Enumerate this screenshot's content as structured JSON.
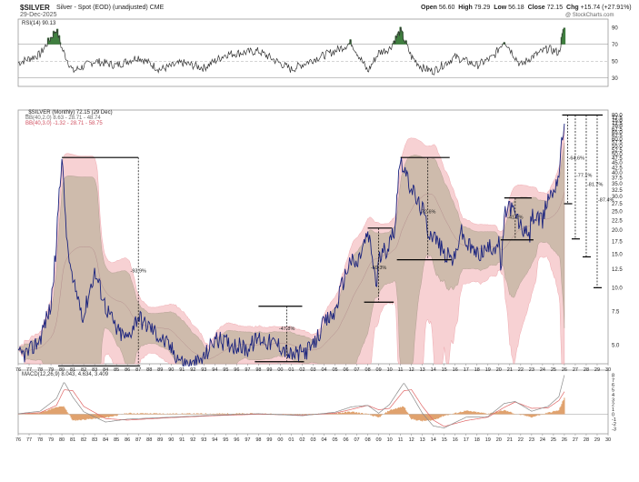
{
  "header": {
    "symbol": "$SILVER",
    "description": "Silver - Spot (EOD) (unadjusted) CME",
    "date": "29-Dec-2025",
    "open_label": "Open",
    "open": "56.60",
    "high_label": "High",
    "high": "79.29",
    "low_label": "Low",
    "low": "56.18",
    "close_label": "Close",
    "close": "72.15",
    "chg_label": "Chg",
    "chg": "+15.74 (+27.91%)",
    "watermark": "@ StockCharts.com"
  },
  "legend": {
    "price": "_$SILVER (Monthly) 72.15 (29 Dec)",
    "bb1": "BB(40,2.0) 8.63 - 28.71 - 48.74",
    "bb2": "BB(40,3.0) -1.32 - 28.71 - 58.75",
    "rsi": "RSI(14) 90.13",
    "macd": "MACD(12,26,9) 8.043, 4.634, 3.409"
  },
  "colors": {
    "price": "#1a237e",
    "bb_inner": "#c8b8a6",
    "bb_outer": "#f6c9cc",
    "bb_outer_line": "#e88890",
    "rsi_line": "#333333",
    "rsi_overbought": "#3f7f3f",
    "macd_line": "#8a8a8a",
    "signal_line": "#e06666",
    "hist": "#e0a26e",
    "annot": "#000000"
  },
  "chart_data": [
    {
      "type": "line",
      "panel": "rsi",
      "y_ticks": [
        "90",
        "70",
        "50",
        "30"
      ],
      "ylim": [
        20,
        100
      ],
      "reference_lines": [
        70,
        50,
        30
      ],
      "x": [
        1976,
        1978,
        1979.5,
        1980,
        1981,
        1983,
        1985,
        1987,
        1989,
        1991,
        1993,
        1995,
        1998,
        2001,
        2003,
        2005,
        2006.5,
        2008,
        2009,
        2010,
        2011,
        2012,
        2013,
        2014,
        2016,
        2018,
        2019.5,
        2020.5,
        2022,
        2023,
        2024.5,
        2025.5,
        2026
      ],
      "values": [
        48,
        58,
        88,
        65,
        38,
        50,
        45,
        55,
        40,
        48,
        42,
        58,
        62,
        40,
        52,
        62,
        72,
        38,
        60,
        65,
        86,
        55,
        42,
        38,
        55,
        45,
        55,
        75,
        45,
        55,
        65,
        60,
        90
      ]
    },
    {
      "type": "line",
      "panel": "price",
      "title": "_$SILVER (Monthly) 72.15 (29 Dec)",
      "y_scale": "log",
      "ylim": [
        4,
        85
      ],
      "y_ticks": [
        "80.0",
        "77.5",
        "75.0",
        "72.5",
        "70.0",
        "67.5",
        "65.0",
        "62.5",
        "60.0",
        "57.5",
        "55.0",
        "52.5",
        "50.0",
        "47.5",
        "45.0",
        "42.5",
        "40.0",
        "37.5",
        "35.0",
        "32.5",
        "30.0",
        "27.5",
        "25.0",
        "22.5",
        "20.0",
        "17.5",
        "15.0",
        "12.5",
        "10.0",
        "7.5",
        "5.0"
      ],
      "x_ticks": [
        "76",
        "77",
        "78",
        "79",
        "80",
        "81",
        "82",
        "83",
        "84",
        "85",
        "86",
        "87",
        "88",
        "89",
        "90",
        "91",
        "92",
        "93",
        "94",
        "95",
        "96",
        "97",
        "98",
        "99",
        "00",
        "01",
        "02",
        "03",
        "04",
        "05",
        "06",
        "07",
        "08",
        "09",
        "10",
        "11",
        "12",
        "13",
        "14",
        "15",
        "16",
        "17",
        "18",
        "19",
        "20",
        "21",
        "22",
        "23",
        "24",
        "25",
        "26",
        "27",
        "28",
        "29",
        "30"
      ],
      "series": [
        {
          "x": [
            1976,
            1977,
            1978,
            1979,
            1979.5,
            1980,
            1980.2,
            1980.5,
            1981,
            1982,
            1983,
            1983.5,
            1984,
            1985,
            1986,
            1987,
            1987.5,
            1988,
            1989,
            1990,
            1991,
            1992,
            1993,
            1994,
            1995,
            1996,
            1997,
            1998,
            1999,
            2000,
            2001,
            2002,
            2003,
            2004,
            2005,
            2006,
            2006.4,
            2007,
            2008,
            2008.2,
            2008.8,
            2009,
            2010,
            2010.5,
            2011.0,
            2011.3,
            2011.7,
            2012,
            2012.5,
            2013,
            2013.5,
            2014,
            2015,
            2016,
            2016.5,
            2017,
            2018,
            2019,
            2020,
            2020.2,
            2020.6,
            2021,
            2022,
            2022.8,
            2023,
            2024,
            2024.5,
            2025,
            2025.5,
            2026
          ],
          "values": [
            4.4,
            4.6,
            5.4,
            8.0,
            16.0,
            48.0,
            30.0,
            16.0,
            10.5,
            7.0,
            12.0,
            10.0,
            8.0,
            6.0,
            5.4,
            7.2,
            6.5,
            6.3,
            5.5,
            4.8,
            4.1,
            3.9,
            4.3,
            5.4,
            5.2,
            5.0,
            4.8,
            5.5,
            5.2,
            5.0,
            4.4,
            4.6,
            4.9,
            6.5,
            7.4,
            12.0,
            14.0,
            13.0,
            19.0,
            17.0,
            10.0,
            14.0,
            17.0,
            21.0,
            48.0,
            43.0,
            35.0,
            34.0,
            28.0,
            26.0,
            20.0,
            19.0,
            15.0,
            14.0,
            20.0,
            17.0,
            15.0,
            16.0,
            17.0,
            12.0,
            25.0,
            27.0,
            21.0,
            18.0,
            24.0,
            22.0,
            30.0,
            32.0,
            40.0,
            72.0
          ]
        }
      ],
      "annotations": [
        "-93.9%",
        "-47.8%",
        "-59.3%",
        "-72.6%",
        "-41.2%",
        "-64.6%",
        "-77.1%",
        "-81.7%",
        "-87.4%"
      ]
    },
    {
      "type": "line",
      "panel": "macd",
      "title": "MACD(12,26,9) 8.043, 4.634, 3.409",
      "ylim": [
        -4,
        9
      ],
      "y_ticks": [
        "8",
        "7",
        "6",
        "5",
        "4",
        "3",
        "2",
        "1",
        "0",
        "-1",
        "-2",
        "-3"
      ],
      "x_ticks": [
        "76",
        "77",
        "78",
        "79",
        "80",
        "81",
        "82",
        "83",
        "84",
        "85",
        "86",
        "87",
        "88",
        "89",
        "90",
        "91",
        "92",
        "93",
        "94",
        "95",
        "96",
        "97",
        "98",
        "99",
        "00",
        "01",
        "02",
        "03",
        "04",
        "05",
        "06",
        "07",
        "08",
        "09",
        "10",
        "11",
        "12",
        "13",
        "14",
        "15",
        "16",
        "17",
        "18",
        "19",
        "20",
        "21",
        "22",
        "23",
        "24",
        "25",
        "26",
        "27",
        "28",
        "29",
        "30"
      ],
      "x": [
        1976,
        1978,
        1979.5,
        1980.2,
        1981,
        1982,
        1984,
        1986,
        1990,
        1994,
        1998,
        2002,
        2005,
        2006.5,
        2008,
        2009,
        2010,
        2011.3,
        2012,
        2013,
        2014,
        2015,
        2017,
        2019,
        2020.5,
        2021.5,
        2023,
        2024.5,
        2025.5,
        2026
      ],
      "series": [
        {
          "name": "MACD",
          "values": [
            0.1,
            0.6,
            3.2,
            6.6,
            3.5,
            0.5,
            -1.6,
            -1.0,
            -0.6,
            -0.2,
            0.1,
            -0.3,
            0.4,
            1.5,
            1.8,
            0.2,
            2.0,
            6.4,
            4.0,
            0.2,
            -2.4,
            -2.8,
            -0.6,
            -0.5,
            2.2,
            2.6,
            0.6,
            1.6,
            3.6,
            8.0
          ]
        },
        {
          "name": "Signal",
          "values": [
            0.1,
            0.3,
            1.8,
            5.0,
            4.8,
            1.6,
            -0.9,
            -1.2,
            -0.7,
            -0.3,
            0.0,
            -0.2,
            0.2,
            1.0,
            1.8,
            0.9,
            1.2,
            4.8,
            5.0,
            1.6,
            -1.2,
            -2.5,
            -1.3,
            -0.6,
            1.4,
            2.5,
            1.2,
            1.3,
            2.8,
            4.6
          ]
        }
      ]
    }
  ]
}
